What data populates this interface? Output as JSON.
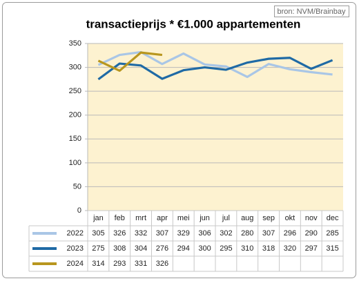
{
  "source": "bron: NVM/Brainbay",
  "chart_data": {
    "type": "line",
    "title": "transactieprijs * €1.000 appartementen",
    "categories": [
      "jan",
      "feb",
      "mrt",
      "apr",
      "mei",
      "jun",
      "jul",
      "aug",
      "sep",
      "okt",
      "nov",
      "dec"
    ],
    "series": [
      {
        "name": "2022",
        "color": "#a9c6e6",
        "values": [
          305,
          326,
          332,
          307,
          329,
          306,
          302,
          280,
          307,
          296,
          290,
          285
        ]
      },
      {
        "name": "2023",
        "color": "#1f6aa5",
        "values": [
          275,
          308,
          304,
          276,
          294,
          300,
          295,
          310,
          318,
          320,
          297,
          315
        ]
      },
      {
        "name": "2024",
        "color": "#b8961e",
        "values": [
          314,
          293,
          331,
          326,
          null,
          null,
          null,
          null,
          null,
          null,
          null,
          null
        ]
      }
    ],
    "ylim": [
      0,
      350
    ],
    "yticks": [
      0,
      50,
      100,
      150,
      200,
      250,
      300,
      350
    ],
    "grid": true,
    "plot_background": "#fdf2d0"
  }
}
